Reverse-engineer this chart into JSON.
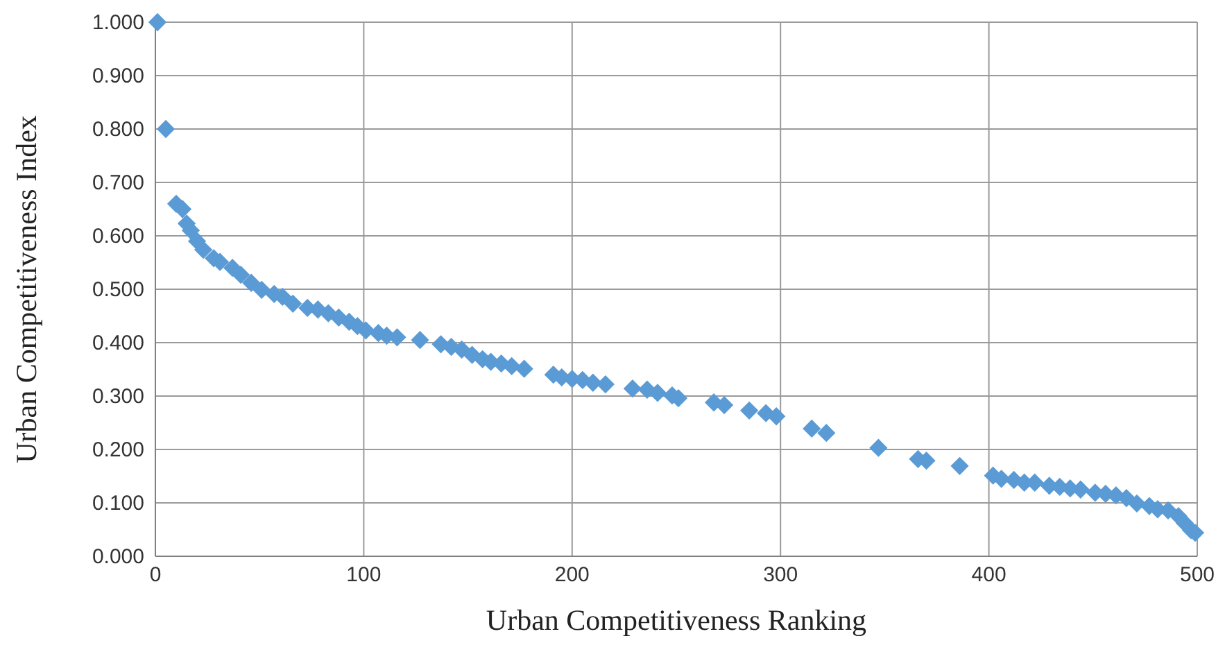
{
  "chart_data": {
    "type": "scatter",
    "xlabel": "Urban Competitiveness Ranking",
    "ylabel": "Urban Competitiveness Index",
    "marker": "diamond",
    "grid": true,
    "xlim": [
      0,
      500
    ],
    "xticks": [
      0,
      100,
      200,
      300,
      400,
      500
    ],
    "ylim": [
      0,
      1
    ],
    "yticks": [
      {
        "value": 0,
        "label": "0.000"
      },
      {
        "value": 0.1,
        "label": "0.100"
      },
      {
        "value": 0.2,
        "label": "0.200"
      },
      {
        "value": 0.3,
        "label": "0.300"
      },
      {
        "value": 0.4,
        "label": "0.400"
      },
      {
        "value": 0.5,
        "label": "0.500"
      },
      {
        "value": 0.6,
        "label": "0.600"
      },
      {
        "value": 0.7,
        "label": "0.700"
      },
      {
        "value": 0.8,
        "label": "0.800"
      },
      {
        "value": 0.9,
        "label": "0.900"
      },
      {
        "value": 1,
        "label": "1.000"
      }
    ],
    "series": [
      {
        "color": "#5b9bd5",
        "x": [
          1,
          5,
          10,
          13,
          15,
          17,
          20,
          23,
          28,
          31,
          37,
          41,
          46,
          51,
          57,
          61,
          66,
          73,
          78,
          83,
          88,
          93,
          97,
          101,
          107,
          111,
          116,
          127,
          137,
          142,
          147,
          152,
          157,
          161,
          166,
          171,
          177,
          191,
          195,
          200,
          205,
          210,
          216,
          229,
          236,
          241,
          248,
          251,
          268,
          273,
          285,
          293,
          298,
          315,
          322,
          347,
          366,
          370,
          386,
          402,
          406,
          412,
          417,
          422,
          429,
          434,
          439,
          444,
          451,
          456,
          461,
          466,
          471,
          477,
          481,
          486,
          491,
          494,
          497,
          499
        ],
        "values": [
          1.0,
          0.8,
          0.66,
          0.65,
          0.623,
          0.61,
          0.59,
          0.574,
          0.558,
          0.551,
          0.54,
          0.527,
          0.512,
          0.499,
          0.491,
          0.486,
          0.473,
          0.465,
          0.462,
          0.455,
          0.447,
          0.439,
          0.431,
          0.423,
          0.418,
          0.413,
          0.41,
          0.405,
          0.397,
          0.392,
          0.387,
          0.377,
          0.369,
          0.364,
          0.361,
          0.356,
          0.351,
          0.34,
          0.335,
          0.332,
          0.33,
          0.325,
          0.322,
          0.314,
          0.312,
          0.306,
          0.301,
          0.296,
          0.288,
          0.283,
          0.273,
          0.268,
          0.262,
          0.239,
          0.231,
          0.203,
          0.182,
          0.179,
          0.169,
          0.151,
          0.145,
          0.143,
          0.138,
          0.138,
          0.132,
          0.13,
          0.127,
          0.125,
          0.119,
          0.117,
          0.114,
          0.109,
          0.099,
          0.094,
          0.088,
          0.086,
          0.075,
          0.062,
          0.049,
          0.044
        ]
      }
    ]
  }
}
